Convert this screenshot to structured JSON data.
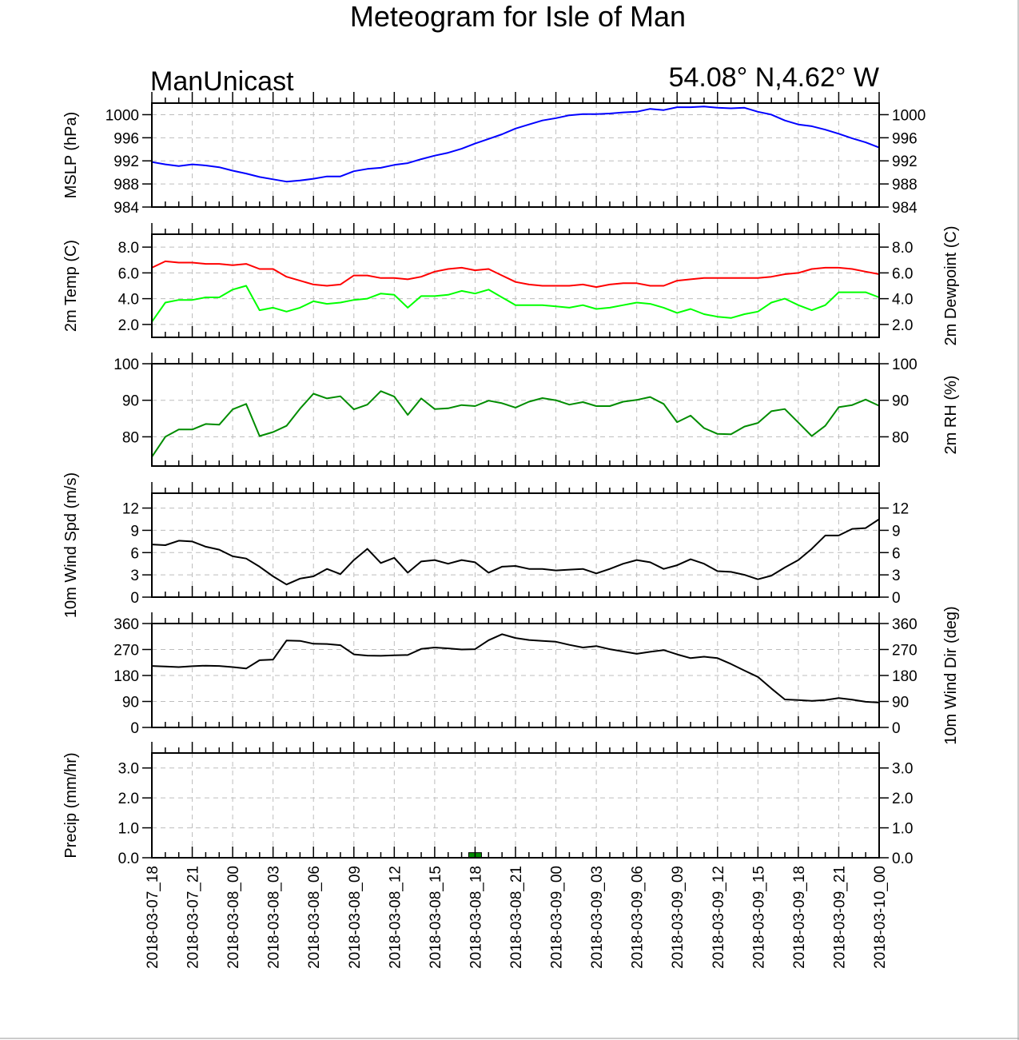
{
  "chart_data": {
    "type": "line",
    "title": "Meteogram for Isle of Man",
    "left_subtitle": "ManUnicast",
    "right_subtitle": "54.08° N,4.62° W",
    "time_tick_labels": [
      "2018-03-07_18",
      "2018-03-07_21",
      "2018-03-08_00",
      "2018-03-08_03",
      "2018-03-08_06",
      "2018-03-08_09",
      "2018-03-08_12",
      "2018-03-08_15",
      "2018-03-08_18",
      "2018-03-08_21",
      "2018-03-09_00",
      "2018-03-09_03",
      "2018-03-09_06",
      "2018-03-09_09",
      "2018-03-09_12",
      "2018-03-09_15",
      "2018-03-09_18",
      "2018-03-09_21",
      "2018-03-10_00"
    ],
    "x_range_hours": [
      0,
      54
    ],
    "x_step_hours": 1,
    "grid": true,
    "panels": [
      {
        "id": "mslp",
        "ylabel_left": "MSLP (hPa)",
        "ylabel_right": "",
        "ylim": [
          984,
          1002
        ],
        "yticks": [
          984,
          988,
          992,
          996,
          1000
        ],
        "tick_labels": [
          "984",
          "988",
          "992",
          "996",
          "1000"
        ],
        "series": [
          {
            "color": "#0000ff",
            "values": [
              991.8,
              991.4,
              991.1,
              991.4,
              991.2,
              990.9,
              990.3,
              989.8,
              989.2,
              988.8,
              988.4,
              988.6,
              988.9,
              989.3,
              989.3,
              990.2,
              990.6,
              990.8,
              991.3,
              991.6,
              992.3,
              992.9,
              993.4,
              994.1,
              995.0,
              995.8,
              996.6,
              997.6,
              998.3,
              999.0,
              999.4,
              999.9,
              1000.1,
              1000.1,
              1000.2,
              1000.4,
              1000.5,
              1001.0,
              1000.8,
              1001.3,
              1001.3,
              1001.4,
              1001.2,
              1001.1,
              1001.2,
              1000.5,
              1000.0,
              999.0,
              998.3,
              998.0,
              997.4,
              996.7,
              995.9,
              995.2,
              994.3
            ]
          }
        ]
      },
      {
        "id": "temp",
        "ylabel_left": "2m Temp (C)",
        "ylabel_right": "2m Dewpoint (C)",
        "ylim": [
          1.0,
          9.0
        ],
        "yticks": [
          2.0,
          4.0,
          6.0,
          8.0
        ],
        "tick_labels": [
          "2.0",
          "4.0",
          "6.0",
          "8.0"
        ],
        "series": [
          {
            "color": "#ff0000",
            "values": [
              6.4,
              6.9,
              6.8,
              6.8,
              6.7,
              6.7,
              6.6,
              6.7,
              6.3,
              6.3,
              5.7,
              5.4,
              5.1,
              5.0,
              5.1,
              5.8,
              5.8,
              5.6,
              5.6,
              5.5,
              5.7,
              6.1,
              6.3,
              6.4,
              6.2,
              6.3,
              5.8,
              5.3,
              5.1,
              5.0,
              5.0,
              5.0,
              5.1,
              4.9,
              5.1,
              5.2,
              5.2,
              5.0,
              5.0,
              5.4,
              5.5,
              5.6,
              5.6,
              5.6,
              5.6,
              5.6,
              5.7,
              5.9,
              6.0,
              6.3,
              6.4,
              6.4,
              6.3,
              6.1,
              5.9
            ]
          },
          {
            "color": "#00ff00",
            "values": [
              2.2,
              3.7,
              3.9,
              3.9,
              4.1,
              4.1,
              4.7,
              5.0,
              3.1,
              3.3,
              3.0,
              3.3,
              3.8,
              3.6,
              3.7,
              3.9,
              4.0,
              4.4,
              4.3,
              3.3,
              4.2,
              4.2,
              4.3,
              4.6,
              4.4,
              4.7,
              4.1,
              3.5,
              3.5,
              3.5,
              3.4,
              3.3,
              3.5,
              3.2,
              3.3,
              3.5,
              3.7,
              3.6,
              3.3,
              2.9,
              3.2,
              2.8,
              2.6,
              2.5,
              2.8,
              3.0,
              3.7,
              4.0,
              3.5,
              3.1,
              3.5,
              4.5,
              4.5,
              4.5,
              4.1
            ]
          }
        ]
      },
      {
        "id": "rh",
        "ylabel_left": "",
        "ylabel_right": "2m RH (%)",
        "ylim": [
          72,
          100
        ],
        "yticks": [
          80,
          90,
          100
        ],
        "tick_labels": [
          "80",
          "90",
          "100"
        ],
        "series": [
          {
            "color": "#008c00",
            "values": [
              74.5,
              80.0,
              82.0,
              82.0,
              83.5,
              83.3,
              87.5,
              89.0,
              80.2,
              81.3,
              83.0,
              87.7,
              91.8,
              90.5,
              91.1,
              87.5,
              88.8,
              92.5,
              91.0,
              86.0,
              90.5,
              87.6,
              87.8,
              88.7,
              88.4,
              89.9,
              89.2,
              88.0,
              89.6,
              90.6,
              90.0,
              88.8,
              89.5,
              88.4,
              88.4,
              89.6,
              90.1,
              90.9,
              89.0,
              84.0,
              85.8,
              82.4,
              80.8,
              80.7,
              82.8,
              83.8,
              87.0,
              87.6,
              83.9,
              80.2,
              83.0,
              88.1,
              88.7,
              90.2,
              88.5
            ]
          }
        ]
      },
      {
        "id": "wspd",
        "ylabel_left": "10m Wind Spd (m/s)",
        "ylabel_right": "",
        "ylim": [
          0,
          14
        ],
        "yticks": [
          0,
          3,
          6,
          9,
          12
        ],
        "tick_labels": [
          "0",
          "3",
          "6",
          "9",
          "12"
        ],
        "series": [
          {
            "color": "#000000",
            "values": [
              7.1,
              7.0,
              7.6,
              7.5,
              6.8,
              6.4,
              5.5,
              5.2,
              4.1,
              2.8,
              1.7,
              2.5,
              2.8,
              3.8,
              3.1,
              5.0,
              6.5,
              4.6,
              5.3,
              3.3,
              4.8,
              5.0,
              4.5,
              5.0,
              4.7,
              3.3,
              4.1,
              4.2,
              3.8,
              3.8,
              3.6,
              3.7,
              3.8,
              3.2,
              3.8,
              4.5,
              5.0,
              4.7,
              3.8,
              4.3,
              5.1,
              4.5,
              3.5,
              3.4,
              3.0,
              2.4,
              2.9,
              4.0,
              5.0,
              6.5,
              8.3,
              8.3,
              9.2,
              9.3,
              10.5
            ]
          }
        ]
      },
      {
        "id": "wdir",
        "ylabel_left": "",
        "ylabel_right": "10m Wind Dir (deg)",
        "ylim": [
          0,
          360
        ],
        "yticks": [
          0,
          90,
          180,
          270,
          360
        ],
        "tick_labels": [
          "0",
          "90",
          "180",
          "270",
          "360"
        ],
        "series": [
          {
            "color": "#000000",
            "values": [
              213,
              211,
              209,
              212,
              214,
              213,
              209,
              204,
              233,
              235,
              301,
              300,
              290,
              289,
              285,
              253,
              249,
              248,
              250,
              251,
              272,
              277,
              274,
              270,
              271,
              302,
              323,
              310,
              303,
              300,
              297,
              286,
              277,
              282,
              271,
              263,
              255,
              262,
              268,
              253,
              240,
              245,
              240,
              220,
              197,
              175,
              135,
              97,
              95,
              92,
              95,
              102,
              96,
              89,
              86
            ]
          }
        ]
      },
      {
        "id": "precip",
        "ylabel_left": "Precip (mm/hr)",
        "ylabel_right": "",
        "ylim": [
          0,
          3.5
        ],
        "yticks": [
          0.0,
          1.0,
          2.0,
          3.0
        ],
        "tick_labels": [
          "0.0",
          "1.0",
          "2.0",
          "3.0"
        ],
        "bar_color": "#008c00",
        "series": [
          {
            "type": "bar",
            "values": [
              0,
              0,
              0,
              0,
              0,
              0,
              0,
              0,
              0,
              0,
              0,
              0,
              0,
              0,
              0,
              0,
              0,
              0,
              0,
              0,
              0,
              0,
              0,
              0,
              0.17,
              0,
              0,
              0,
              0,
              0,
              0,
              0,
              0,
              0,
              0,
              0,
              0,
              0,
              0,
              0,
              0,
              0,
              0,
              0,
              0,
              0,
              0,
              0,
              0,
              0,
              0,
              0,
              0,
              0,
              0
            ]
          }
        ]
      }
    ]
  }
}
